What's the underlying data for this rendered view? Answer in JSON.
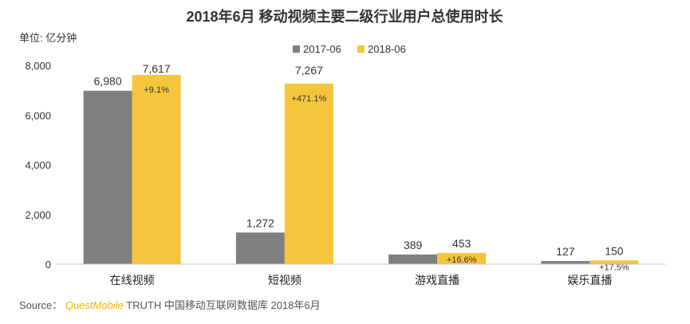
{
  "chart_data": {
    "type": "bar",
    "title": "2018年6月 移动视频主要二级行业用户总使用时长",
    "ylabel": "单位: 亿分钟",
    "xlabel": "",
    "ylim": [
      0,
      8000
    ],
    "y_ticks": [
      "0",
      "2,000",
      "4,000",
      "6,000",
      "8,000"
    ],
    "y_tick_values": [
      0,
      2000,
      4000,
      6000,
      8000
    ],
    "categories": [
      "在线视频",
      "短视频",
      "游戏直播",
      "娱乐直播"
    ],
    "series": [
      {
        "name": "2017-06",
        "color": "#7f7f7f",
        "values": [
          6980,
          1272,
          389,
          127
        ],
        "labels": [
          "6,980",
          "1,272",
          "389",
          "127"
        ]
      },
      {
        "name": "2018-06",
        "color": "#f5c53c",
        "values": [
          7617,
          7267,
          453,
          150
        ],
        "labels": [
          "7,617",
          "7,267",
          "453",
          "150"
        ]
      }
    ],
    "growth_labels": [
      "+9.1%",
      "+471.1%",
      "+16.6%",
      "+17.5%"
    ],
    "legend_position": "top-center",
    "grid": false
  },
  "source": {
    "prefix": "Source：",
    "brand": "QuestMobile",
    "rest": "TRUTH 中国移动互联网数据库 2018年6月"
  }
}
